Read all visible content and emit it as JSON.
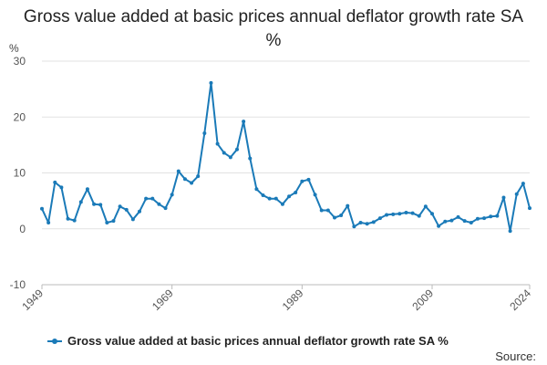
{
  "chart_data": {
    "type": "line",
    "title": "Gross value added at basic prices annual deflator growth rate SA %",
    "ylabel": "%",
    "ylim": [
      -10,
      30
    ],
    "yticks": [
      -10,
      0,
      10,
      20,
      30
    ],
    "xlim": [
      1949,
      2024
    ],
    "xticks": [
      1949,
      1969,
      1989,
      2009,
      2024
    ],
    "grid": true,
    "legend_position": "bottom",
    "series": [
      {
        "name": "Gross value added at basic prices annual deflator growth rate SA %",
        "color": "#1a7ab8",
        "x": [
          1949,
          1950,
          1951,
          1952,
          1953,
          1954,
          1955,
          1956,
          1957,
          1958,
          1959,
          1960,
          1961,
          1962,
          1963,
          1964,
          1965,
          1966,
          1967,
          1968,
          1969,
          1970,
          1971,
          1972,
          1973,
          1974,
          1975,
          1976,
          1977,
          1978,
          1979,
          1980,
          1981,
          1982,
          1983,
          1984,
          1985,
          1986,
          1987,
          1988,
          1989,
          1990,
          1991,
          1992,
          1993,
          1994,
          1995,
          1996,
          1997,
          1998,
          1999,
          2000,
          2001,
          2002,
          2003,
          2004,
          2005,
          2006,
          2007,
          2008,
          2009,
          2010,
          2011,
          2012,
          2013,
          2014,
          2015,
          2016,
          2017,
          2018,
          2019,
          2020,
          2021,
          2022,
          2023,
          2024
        ],
        "y": [
          3.6,
          1.1,
          8.3,
          7.4,
          1.8,
          1.5,
          4.8,
          7.1,
          4.4,
          4.3,
          1.1,
          1.4,
          4.0,
          3.4,
          1.7,
          3.1,
          5.4,
          5.4,
          4.4,
          3.7,
          6.1,
          10.3,
          8.9,
          8.2,
          9.4,
          17.1,
          26.1,
          15.2,
          13.6,
          12.8,
          14.2,
          19.2,
          12.6,
          7.1,
          6.0,
          5.4,
          5.4,
          4.4,
          5.8,
          6.5,
          8.5,
          8.8,
          6.1,
          3.3,
          3.3,
          2.0,
          2.4,
          4.1,
          0.4,
          1.1,
          0.9,
          1.2,
          1.9,
          2.5,
          2.6,
          2.7,
          2.9,
          2.8,
          2.3,
          4.0,
          2.7,
          0.5,
          1.3,
          1.5,
          2.1,
          1.4,
          1.1,
          1.8,
          1.9,
          2.2,
          2.3,
          5.6,
          -0.4,
          6.2,
          8.1,
          3.7
        ]
      }
    ]
  },
  "legend": {
    "label": "Gross value added at basic prices annual deflator growth rate SA %"
  },
  "source_label": "Source:"
}
